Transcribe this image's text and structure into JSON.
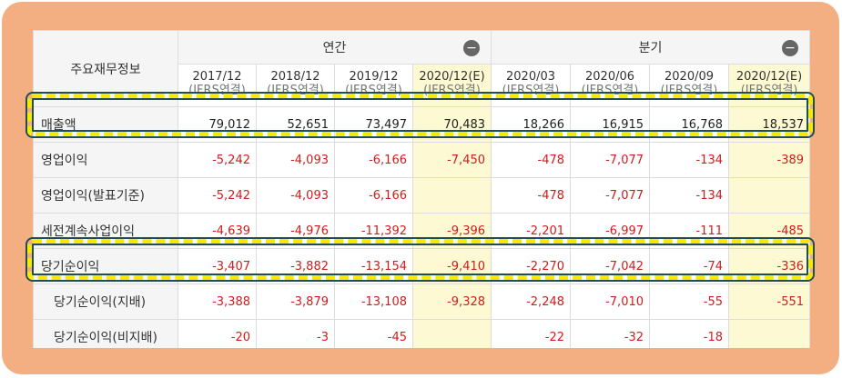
{
  "header": {
    "title": "주요재무정보",
    "annual": "연간",
    "quarterly": "분기",
    "collapse_icon": "minus-circle-icon"
  },
  "periods": [
    {
      "date": "2017/12",
      "basis": "(IFRS연결)"
    },
    {
      "date": "2018/12",
      "basis": "(IFRS연결)"
    },
    {
      "date": "2019/12",
      "basis": "(IFRS연결)"
    },
    {
      "date": "2020/12(E)",
      "basis": "(IFRS연결)"
    },
    {
      "date": "2020/03",
      "basis": "(IFRS연결)"
    },
    {
      "date": "2020/06",
      "basis": "(IFRS연결)"
    },
    {
      "date": "2020/09",
      "basis": "(IFRS연결)"
    },
    {
      "date": "2020/12(E)",
      "basis": "(IFRS연결)"
    }
  ],
  "rows": [
    {
      "label": "매출액",
      "values": [
        "79,012",
        "52,651",
        "73,497",
        "70,483",
        "18,266",
        "16,915",
        "16,768",
        "18,537"
      ]
    },
    {
      "label": "영업이익",
      "values": [
        "-5,242",
        "-4,093",
        "-6,166",
        "-7,450",
        "-478",
        "-7,077",
        "-134",
        "-389"
      ]
    },
    {
      "label": "영업이익(발표기준)",
      "values": [
        "-5,242",
        "-4,093",
        "-6,166",
        "",
        "-478",
        "-7,077",
        "-134",
        ""
      ]
    },
    {
      "label": "세전계속사업이익",
      "values": [
        "-4,639",
        "-4,976",
        "-11,392",
        "-9,396",
        "-2,201",
        "-6,997",
        "-111",
        "-485"
      ]
    },
    {
      "label": "당기순이익",
      "values": [
        "-3,407",
        "-3,882",
        "-13,154",
        "-9,410",
        "-2,270",
        "-7,042",
        "-74",
        "-336"
      ]
    },
    {
      "label": "당기순이익(지배)",
      "values": [
        "-3,388",
        "-3,879",
        "-13,108",
        "-9,328",
        "-2,248",
        "-7,010",
        "-55",
        "-551"
      ]
    },
    {
      "label": "당기순이익(비지배)",
      "values": [
        "-20",
        "-3",
        "-45",
        "",
        "-22",
        "-32",
        "-18",
        ""
      ]
    }
  ],
  "colors": {
    "frame": "#f3af82",
    "negative": "#d01c1c",
    "estimate_bg": "#fdf9d2",
    "highlight_dash": "#f7e900",
    "highlight_outline": "#1f4e57"
  }
}
